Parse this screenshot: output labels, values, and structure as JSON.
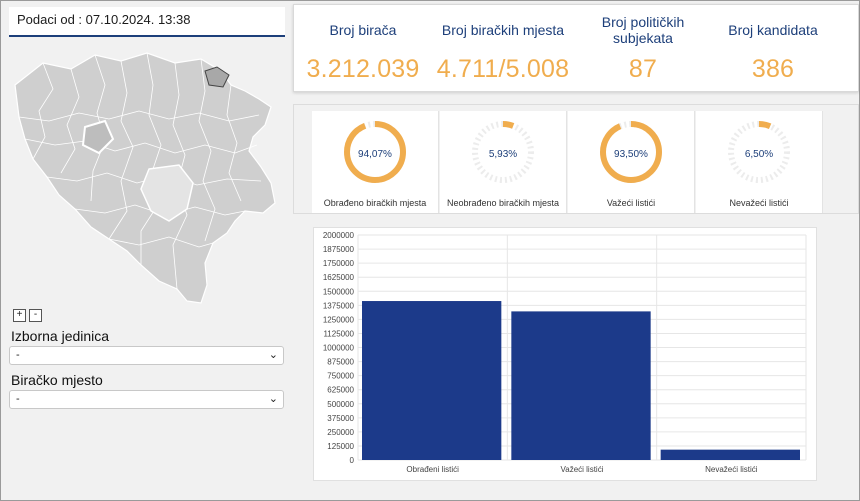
{
  "updated": "Podaci od : 07.10.2024. 13:38",
  "zoom": {
    "in": "+",
    "out": "-"
  },
  "filters": {
    "unit_label": "Izborna jedinica",
    "unit_value": "-",
    "place_label": "Biračko mjesto",
    "place_value": "-"
  },
  "stats": [
    {
      "label": "Broj birača",
      "value": "3.212.039"
    },
    {
      "label": "Broj biračkih mjesta",
      "value": "4.711/5.008"
    },
    {
      "label": "Broj političkih subjekata",
      "value": "87"
    },
    {
      "label": "Broj kandidata",
      "value": "386"
    }
  ],
  "donuts": [
    {
      "pct": "94,07%",
      "fraction": 0.9407,
      "label": "Obrađeno biračkih mjesta"
    },
    {
      "pct": "5,93%",
      "fraction": 0.0593,
      "label": "Neobrađeno biračkih mjesta"
    },
    {
      "pct": "93,50%",
      "fraction": 0.935,
      "label": "Važeći listići"
    },
    {
      "pct": "6,50%",
      "fraction": 0.065,
      "label": "Nevažeći listići"
    }
  ],
  "colors": {
    "accent": "#f0ad4e",
    "bar": "#1c3a8a",
    "title": "#1d3f7a"
  },
  "chart_data": {
    "type": "bar",
    "categories": [
      "Obrađeni listići",
      "Važeći listići",
      "Nevažeći listići"
    ],
    "values": [
      1413000,
      1321000,
      92000
    ],
    "ylim": [
      0,
      2000000
    ],
    "yticks": [
      0,
      125000,
      250000,
      375000,
      500000,
      625000,
      750000,
      875000,
      1000000,
      1125000,
      1250000,
      1375000,
      1500000,
      1625000,
      1750000,
      1875000,
      2000000
    ],
    "grid": true
  }
}
